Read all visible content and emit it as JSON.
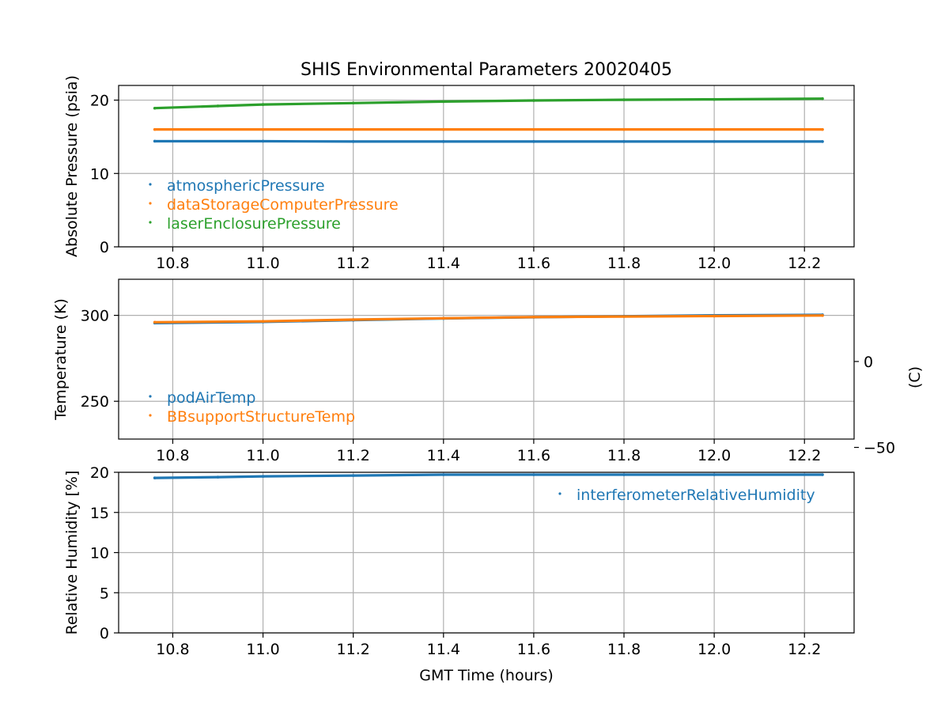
{
  "chart_data": {
    "title": "SHIS Environmental Parameters 20020405",
    "xlabel": "GMT Time (hours)",
    "xlim": [
      10.68,
      12.31
    ],
    "xticks": [
      10.8,
      11.0,
      11.2,
      11.4,
      11.6,
      11.8,
      12.0,
      12.2
    ],
    "xtick_labels": [
      "10.8",
      "11.0",
      "11.2",
      "11.4",
      "11.6",
      "11.8",
      "12.0",
      "12.2"
    ],
    "grid": true,
    "panels": [
      {
        "type": "scatter",
        "ylabel": "Absolute Pressure (psia)",
        "ylim": [
          0,
          22
        ],
        "yticks": [
          0,
          10,
          20
        ],
        "ytick_labels": [
          "0",
          "10",
          "20"
        ],
        "legend_position": "lower-left",
        "series": [
          {
            "name": "atmosphericPressure",
            "color": "#1f77b4",
            "x": [
              10.76,
              11.0,
              11.2,
              11.4,
              11.6,
              11.8,
              12.0,
              12.24
            ],
            "y": [
              14.4,
              14.4,
              14.35,
              14.35,
              14.35,
              14.35,
              14.35,
              14.35
            ]
          },
          {
            "name": "dataStorageComputerPressure",
            "color": "#ff7f0e",
            "x": [
              10.76,
              11.0,
              11.2,
              11.4,
              11.6,
              11.8,
              12.0,
              12.24
            ],
            "y": [
              16.0,
              16.0,
              16.0,
              16.0,
              16.0,
              16.0,
              16.0,
              16.0
            ]
          },
          {
            "name": "laserEnclosurePressure",
            "color": "#2ca02c",
            "x": [
              10.76,
              10.9,
              11.0,
              11.2,
              11.4,
              11.6,
              11.8,
              12.0,
              12.24
            ],
            "y": [
              18.9,
              19.2,
              19.4,
              19.6,
              19.8,
              19.95,
              20.05,
              20.1,
              20.2
            ]
          }
        ]
      },
      {
        "type": "scatter",
        "ylabel": "Temperature (K)",
        "ylim": [
          228,
          321
        ],
        "yticks": [
          250,
          300
        ],
        "ytick_labels": [
          "250",
          "300"
        ],
        "y2label": "(C)",
        "y2_offset": 273.15,
        "y2ticks": [
          -50,
          0
        ],
        "y2tick_labels": [
          "−50",
          "0"
        ],
        "legend_position": "lower-left",
        "series": [
          {
            "name": "podAirTemp",
            "color": "#1f77b4",
            "x": [
              10.76,
              11.0,
              11.2,
              11.4,
              11.6,
              11.8,
              12.0,
              12.24
            ],
            "y": [
              295.5,
              296.2,
              297.2,
              298.2,
              298.9,
              299.5,
              300.0,
              300.3
            ]
          },
          {
            "name": "BBsupportStructureTemp",
            "color": "#ff7f0e",
            "x": [
              10.76,
              11.0,
              11.2,
              11.4,
              11.6,
              11.8,
              12.0,
              12.24
            ],
            "y": [
              296.0,
              296.5,
              297.5,
              298.3,
              299.0,
              299.3,
              299.6,
              299.9
            ]
          }
        ]
      },
      {
        "type": "scatter",
        "ylabel": "Relative Humidity [%]",
        "ylim": [
          0,
          20
        ],
        "yticks": [
          0,
          5,
          10,
          15,
          20
        ],
        "ytick_labels": [
          "0",
          "5",
          "10",
          "15",
          "20"
        ],
        "legend_position": "upper-right",
        "series": [
          {
            "name": "interferometerRelativeHumidity",
            "color": "#1f77b4",
            "x": [
              10.76,
              10.9,
              11.0,
              11.2,
              11.4,
              11.6,
              11.8,
              12.0,
              12.24
            ],
            "y": [
              19.3,
              19.4,
              19.5,
              19.6,
              19.7,
              19.7,
              19.7,
              19.7,
              19.7
            ]
          }
        ]
      }
    ]
  }
}
